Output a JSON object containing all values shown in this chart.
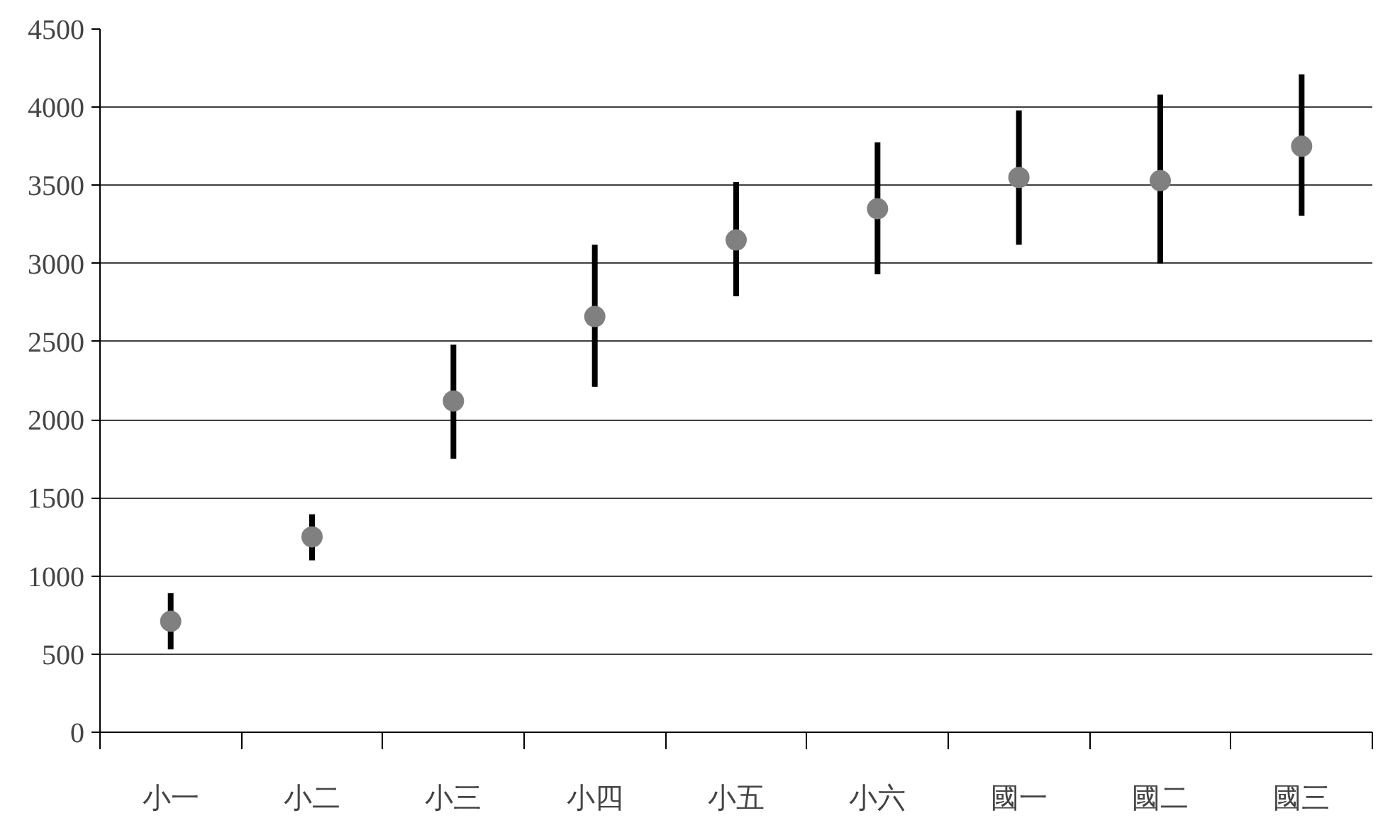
{
  "chart_data": {
    "type": "scatter",
    "categories": [
      "小一",
      "小二",
      "小三",
      "小四",
      "小五",
      "小六",
      "國一",
      "國二",
      "國三"
    ],
    "series": [
      {
        "color": "#808080",
        "values": [
          710,
          1250,
          2120,
          2660,
          3150,
          3350,
          3550,
          3530,
          3750
        ],
        "errors": [
          [
            530,
            890
          ],
          [
            1100,
            1395
          ],
          [
            1750,
            2480
          ],
          [
            2210,
            3120
          ],
          [
            2790,
            3520
          ],
          [
            2930,
            3775
          ],
          [
            3120,
            3980
          ],
          [
            3000,
            4080
          ],
          [
            3305,
            4210
          ]
        ]
      }
    ],
    "ylim": [
      0,
      4500
    ],
    "yticks": [
      0,
      500,
      1000,
      1500,
      2000,
      2500,
      3000,
      3500,
      4000,
      4500
    ],
    "grid": "y",
    "marker": "circle"
  }
}
